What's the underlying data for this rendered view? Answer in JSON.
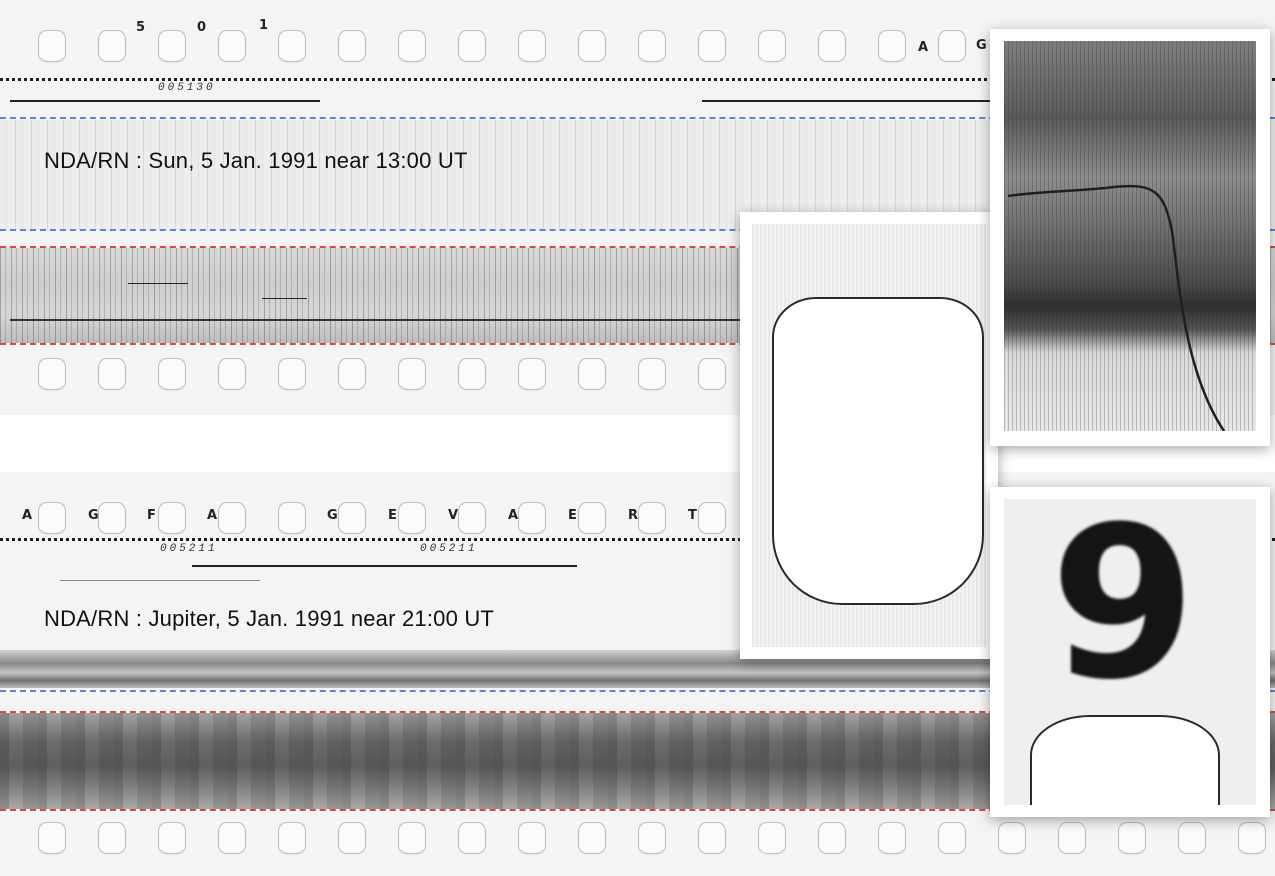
{
  "top_strip": {
    "caption": "NDA/RN : Sun, 5 Jan. 1991 near 13:00 UT",
    "edge_chars": [
      "5",
      "0",
      "1",
      "A",
      "G"
    ],
    "frame_code": "005130"
  },
  "bottom_strip": {
    "caption": "NDA/RN : Jupiter, 5 Jan. 1991 near 21:00 UT",
    "edge_chars": [
      "A",
      "G",
      "F",
      "A",
      "G",
      "E",
      "V",
      "A",
      "E",
      "R",
      "T"
    ],
    "frame_codes": [
      "005211",
      "005211"
    ]
  },
  "insets": {
    "zoom_digit": "9"
  }
}
